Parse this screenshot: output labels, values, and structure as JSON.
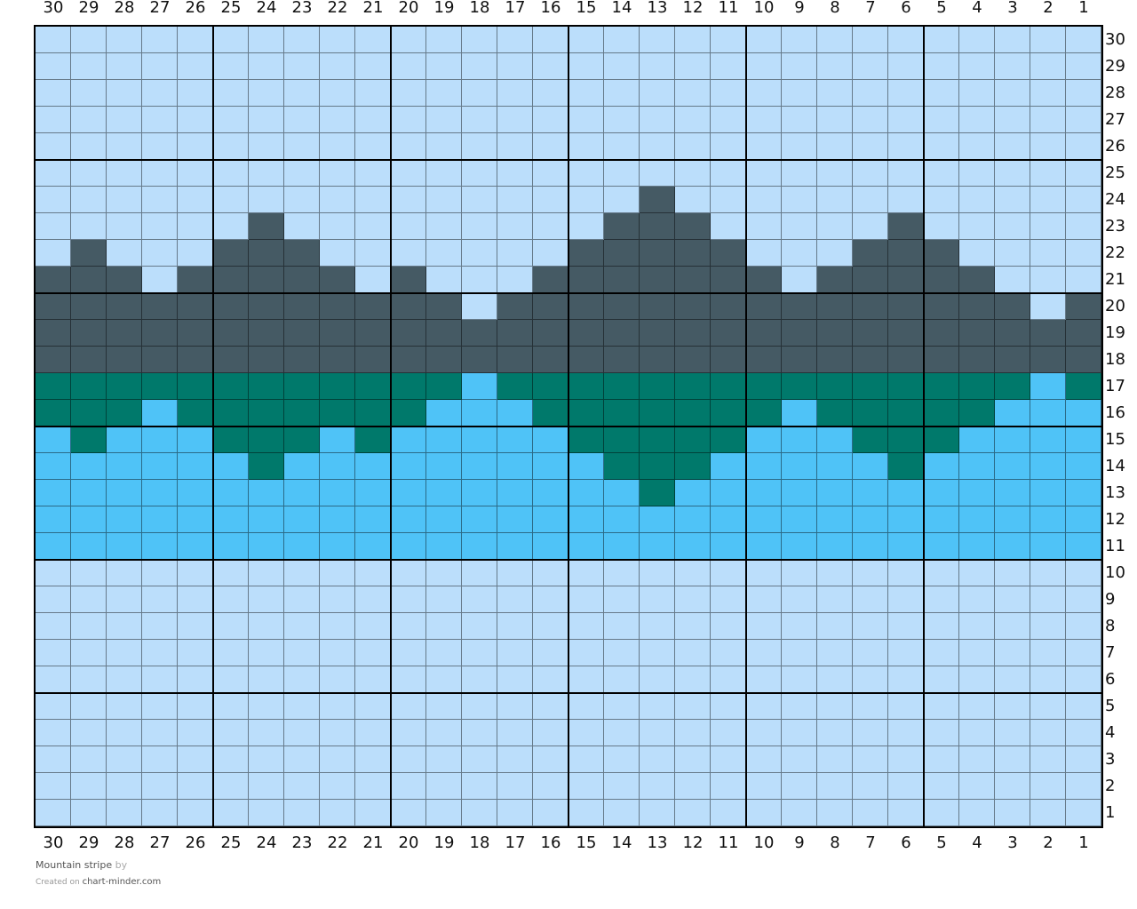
{
  "chart": {
    "title": "Mountain stripe",
    "by_label": "by",
    "created_on_label": "Created on",
    "site": "chart-minder.com",
    "columns": 30,
    "rows": 30,
    "column_labels_order": "30 to 1 left to right",
    "colors": {
      "L": "#bbdefb",
      "D": "#455a64",
      "G": "#00796b",
      "B": "#4fc3f7"
    },
    "grid_rows_top_to_bottom": [
      "LLLLLLLLLLLLLLLLLLLLLLLLLLLLLL",
      "LLLLLLLLLLLLLLLLLLLLLLLLLLLLLL",
      "LLLLLLLLLLLLLLLLLLLLLLLLLLLLLL",
      "LLLLLLLLLLLLLLLLLLLLLLLLLLLLLL",
      "LLLLLLLLLLLLLLLLLLLLLLLLLLLLLL",
      "LLLLLLLLLLLLLLLLLLLLLLLLLLLLLL",
      "LLLLLLLLLLLLLLLLLDLLLLLLLLLLLL",
      "LLLLLLDLLLLLLLLLDDDLLLLLDLLLLL",
      "LDLLLDDDLLLLLLLDDDDDLLLDDDLLLL",
      "DDDLDDDDDLDLLLDDDDDDDLDDDDDLLL",
      "DDDDDDDDDDDDLDDDDDDDDDDDDDDDLD",
      "DDDDDDDDDDDDDDDDDDDDDDDDDDDDDD",
      "DDDDDDDDDDDDDDDDDDDDDDDDDDDDDD",
      "GGGGGGGGGGGGBGGGGGGGGGGGGGGGBG",
      "GGGBGGGGGGGBBBGGGGGGGBGGGGGBBB",
      "BGBBBGGGBGBBBBBGGGGGBBBGGGBBBB",
      "BBBBBBGBBBBBBBBBGGGBBBBBGBBBBB",
      "BBBBBBBBBBBBBBBBBGBBBBBBBBBBBB",
      "BBBBBBBBBBBBBBBBBBBBBBBBBBBBBB",
      "BBBBBBBBBBBBBBBBBBBBBBBBBBBBBB",
      "LLLLLLLLLLLLLLLLLLLLLLLLLLLLLL",
      "LLLLLLLLLLLLLLLLLLLLLLLLLLLLLL",
      "LLLLLLLLLLLLLLLLLLLLLLLLLLLLLL",
      "LLLLLLLLLLLLLLLLLLLLLLLLLLLLLL",
      "LLLLLLLLLLLLLLLLLLLLLLLLLLLLLL",
      "LLLLLLLLLLLLLLLLLLLLLLLLLLLLLL",
      "LLLLLLLLLLLLLLLLLLLLLLLLLLLLLL",
      "LLLLLLLLLLLLLLLLLLLLLLLLLLLLLL",
      "LLLLLLLLLLLLLLLLLLLLLLLLLLLLLL",
      "LLLLLLLLLLLLLLLLLLLLLLLLLLLLLL"
    ]
  }
}
